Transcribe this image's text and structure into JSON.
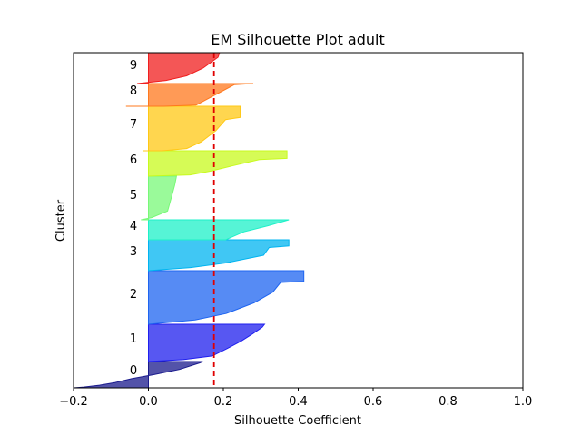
{
  "chart_data": {
    "type": "area",
    "title": "EM Silhouette Plot adult",
    "xlabel": "Silhouette Coefficient",
    "ylabel": "Cluster",
    "xlim": [
      -0.2,
      1.0
    ],
    "xticks": [
      "−0.2",
      "0.0",
      "0.2",
      "0.4",
      "0.6",
      "0.8",
      "1.0"
    ],
    "xtick_values": [
      -0.2,
      0.0,
      0.2,
      0.4,
      0.6,
      0.8,
      1.0
    ],
    "grid": false,
    "average_silhouette": 0.175,
    "average_line_color": "#e00000",
    "clusters": [
      {
        "label": "0",
        "color": "#1a1a8c",
        "max": 0.145,
        "min": -0.2
      },
      {
        "label": "1",
        "color": "#1f1fee",
        "max": 0.31,
        "min": 0.0
      },
      {
        "label": "2",
        "color": "#1e64f0",
        "max": 0.415,
        "min": 0.0
      },
      {
        "label": "3",
        "color": "#00b4f0",
        "max": 0.375,
        "min": 0.0
      },
      {
        "label": "4",
        "color": "#1ef0c8",
        "max": 0.375,
        "min": 0.0
      },
      {
        "label": "5",
        "color": "#78f878",
        "max": 0.075,
        "min": -0.02
      },
      {
        "label": "6",
        "color": "#c8fa1e",
        "max": 0.37,
        "min": 0.0
      },
      {
        "label": "7",
        "color": "#ffc814",
        "max": 0.245,
        "min": -0.015
      },
      {
        "label": "8",
        "color": "#ff781e",
        "max": 0.28,
        "min": -0.06
      },
      {
        "label": "9",
        "color": "#f01e1e",
        "max": 0.19,
        "min": -0.03
      }
    ]
  }
}
